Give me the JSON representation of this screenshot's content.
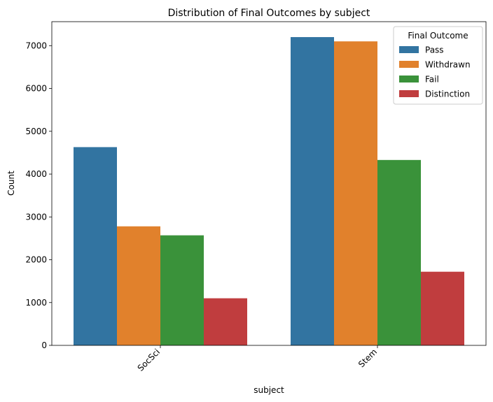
{
  "chart_data": {
    "type": "bar",
    "title": "Distribution of Final Outcomes by subject",
    "xlabel": "subject",
    "ylabel": "Count",
    "categories": [
      "SocSci",
      "Stem"
    ],
    "ylim": [
      0,
      7560
    ],
    "yticks": [
      0,
      1000,
      2000,
      3000,
      4000,
      5000,
      6000,
      7000
    ],
    "legend_title": "Final Outcome",
    "legend_position": "top-right",
    "grid": false,
    "series": [
      {
        "name": "Pass",
        "color": "#3274a1",
        "values": [
          4630,
          7200
        ]
      },
      {
        "name": "Withdrawn",
        "color": "#e1812c",
        "values": [
          2780,
          7100
        ]
      },
      {
        "name": "Fail",
        "color": "#3a923a",
        "values": [
          2570,
          4330
        ]
      },
      {
        "name": "Distinction",
        "color": "#c03d3e",
        "values": [
          1100,
          1720
        ]
      }
    ]
  }
}
